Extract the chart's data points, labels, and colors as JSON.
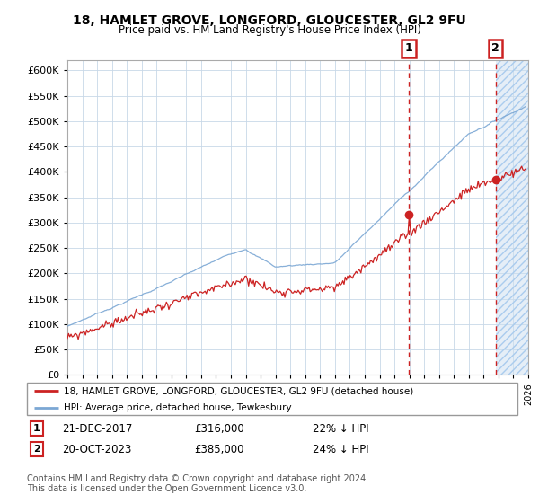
{
  "title": "18, HAMLET GROVE, LONGFORD, GLOUCESTER, GL2 9FU",
  "subtitle": "Price paid vs. HM Land Registry's House Price Index (HPI)",
  "hpi_color": "#7ba7d4",
  "price_color": "#cc2222",
  "marker1_date": 2017.97,
  "marker2_date": 2023.8,
  "marker1_price": 316000,
  "marker2_price": 385000,
  "legend_house_label": "18, HAMLET GROVE, LONGFORD, GLOUCESTER, GL2 9FU (detached house)",
  "legend_hpi_label": "HPI: Average price, detached house, Tewkesbury",
  "footer": "Contains HM Land Registry data © Crown copyright and database right 2024.\nThis data is licensed under the Open Government Licence v3.0.",
  "background_color": "#ffffff",
  "grid_color": "#c8d8e8",
  "xmin": 1995,
  "xmax": 2026,
  "ylim": [
    0,
    620000
  ],
  "yticks": [
    0,
    50000,
    100000,
    150000,
    200000,
    250000,
    300000,
    350000,
    400000,
    450000,
    500000,
    550000,
    600000
  ],
  "ytick_labels": [
    "£0",
    "£50K",
    "£100K",
    "£150K",
    "£200K",
    "£250K",
    "£300K",
    "£350K",
    "£400K",
    "£450K",
    "£500K",
    "£550K",
    "£600K"
  ]
}
